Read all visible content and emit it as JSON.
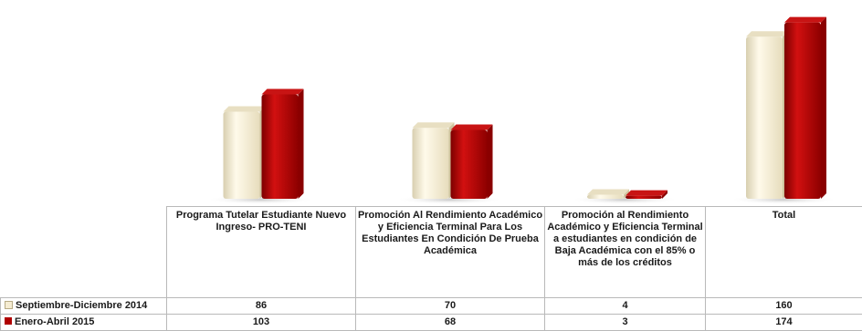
{
  "chart_data": {
    "type": "bar",
    "categories": [
      "Programa Tutelar  Estudiante Nuevo Ingreso- PRO-TENI",
      "Promoción Al Rendimiento Académico y Eficiencia Terminal Para Los Estudiantes En Condición De Prueba Académica",
      "Promoción al Rendimiento Académico y Eficiencia Terminal a estudiantes en condición de Baja Académica con el 85% o más de los créditos",
      "Total"
    ],
    "series": [
      {
        "name": "Septiembre-Diciembre 2014",
        "values": [
          86,
          70,
          4,
          160
        ],
        "color": "#f5ecd2"
      },
      {
        "name": "Enero-Abril 2015",
        "values": [
          103,
          68,
          3,
          174
        ],
        "color": "#b00000"
      }
    ],
    "title": "",
    "xlabel": "",
    "ylabel": "",
    "ylim": [
      0,
      180
    ],
    "grid": false,
    "legend": "data-table-left",
    "data_table": true,
    "style": "3d-cylinder"
  }
}
